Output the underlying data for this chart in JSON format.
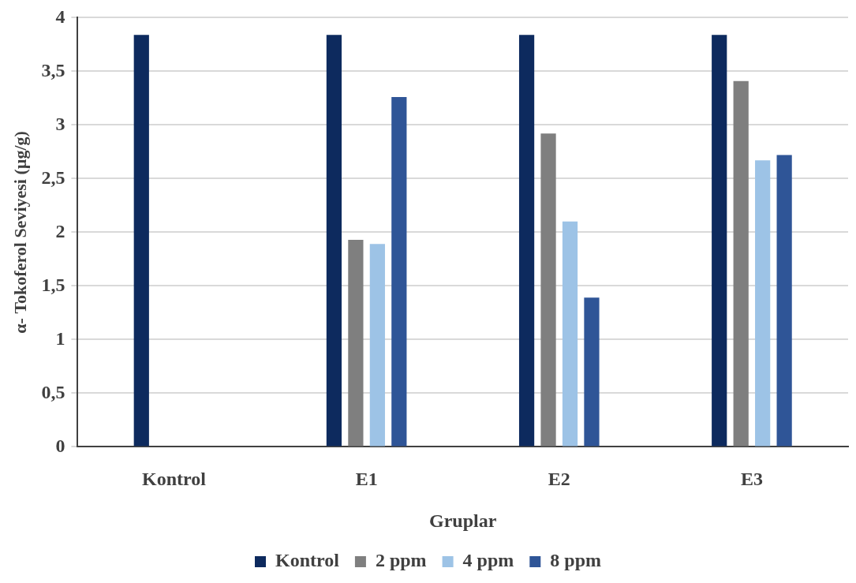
{
  "chart_data": {
    "type": "bar",
    "xlabel": "Gruplar",
    "ylabel": "α- Tokoferol Seviyesi (µg/g)",
    "categories": [
      "Kontrol",
      "E1",
      "E2",
      "E3"
    ],
    "series": [
      {
        "name": "Kontrol",
        "color": "#0d2a5e",
        "values": [
          3.84,
          3.84,
          3.84,
          3.84
        ]
      },
      {
        "name": "2 ppm",
        "color": "#7f7f7f",
        "values": [
          null,
          1.93,
          2.92,
          3.41
        ]
      },
      {
        "name": "4 ppm",
        "color": "#9dc3e6",
        "values": [
          null,
          1.89,
          2.1,
          2.67
        ]
      },
      {
        "name": "8 ppm",
        "color": "#2f5597",
        "values": [
          null,
          3.26,
          1.39,
          2.72
        ]
      }
    ],
    "ylim": [
      0,
      4
    ],
    "yticks": [
      0,
      {
        "value": 0.5,
        "label": "0,5"
      },
      1,
      {
        "value": 1.5,
        "label": "1,5"
      },
      2,
      {
        "value": 2.5,
        "label": "2,5"
      },
      3,
      {
        "value": 3.5,
        "label": "3,5"
      },
      4
    ],
    "grid": "y",
    "legend": "bottom"
  }
}
